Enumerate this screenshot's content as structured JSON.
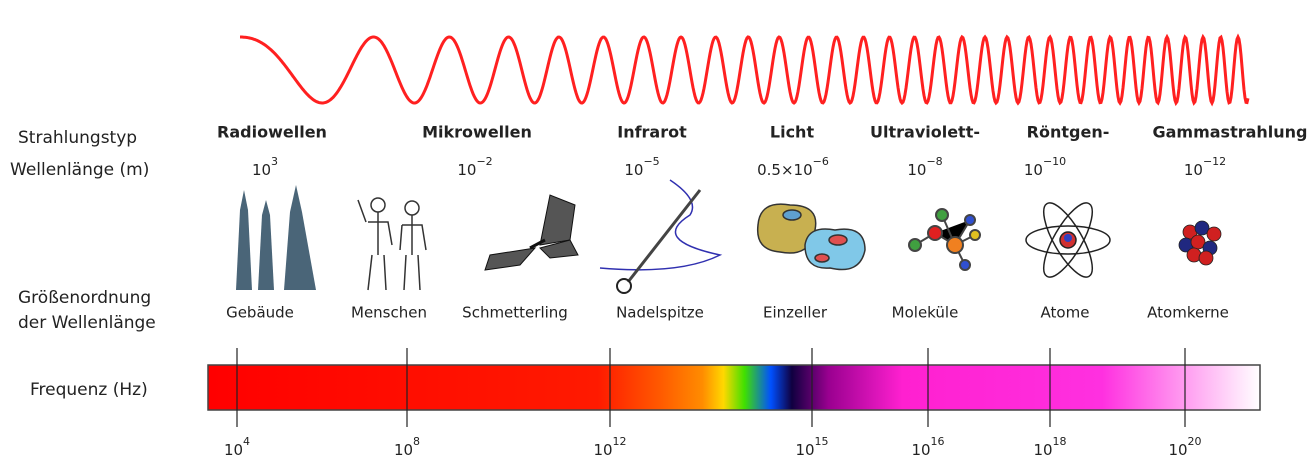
{
  "row_labels": {
    "type": "Strahlungstyp",
    "wavelength": "Wellenlänge (m)",
    "size_1": "Größenordnung",
    "size_2": "der Wellenlänge",
    "frequency": "Frequenz (Hz)"
  },
  "columns": [
    {
      "type": "Radiowellen",
      "wavelength": {
        "base": "10",
        "exp": "3"
      }
    },
    {
      "type": "Mikrowellen",
      "wavelength": {
        "base": "10",
        "exp": "−2"
      }
    },
    {
      "type": "Infrarot",
      "wavelength": {
        "base": "10",
        "exp": "−5"
      }
    },
    {
      "type": "Licht",
      "wavelength": {
        "base": "0.5×10",
        "exp": "−6"
      }
    },
    {
      "type": "Ultraviolett-",
      "wavelength": {
        "base": "10",
        "exp": "−8"
      }
    },
    {
      "type": "Röntgen-",
      "wavelength": {
        "base": "10",
        "exp": "−10"
      }
    },
    {
      "type": "Gammastrahlung",
      "wavelength": {
        "base": "10",
        "exp": "−12"
      }
    }
  ],
  "sizes": [
    "Gebäude",
    "Menschen",
    "Schmetterling",
    "Nadelspitze",
    "Einzeller",
    "Moleküle",
    "Atome",
    "Atomkerne"
  ],
  "frequency_ticks": [
    {
      "base": "10",
      "exp": "4"
    },
    {
      "base": "10",
      "exp": "8"
    },
    {
      "base": "10",
      "exp": "12"
    },
    {
      "base": "10",
      "exp": "15"
    },
    {
      "base": "10",
      "exp": "16"
    },
    {
      "base": "10",
      "exp": "18"
    },
    {
      "base": "10",
      "exp": "20"
    }
  ]
}
